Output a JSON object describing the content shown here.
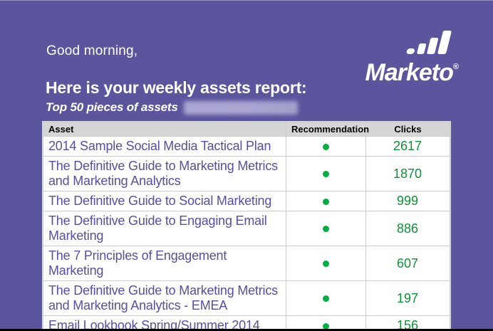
{
  "page": {
    "greeting": "Good morning,",
    "heading": "Here is your weekly assets report:",
    "subheading": "Top 50 pieces of assets"
  },
  "logo": {
    "brand": "Marketo",
    "registered_mark": "®",
    "bars_icon": "marketo-bars-icon"
  },
  "table": {
    "columns": [
      "Asset",
      "Recommendation",
      "Clicks"
    ],
    "rows": [
      {
        "asset": "2014 Sample Social Media Tactical Plan",
        "recommendation": "green-dot",
        "clicks": "2617"
      },
      {
        "asset": "The Definitive Guide to Marketing Metrics and Marketing Analytics",
        "recommendation": "green-dot",
        "clicks": "1870"
      },
      {
        "asset": "The Definitive Guide to Social Marketing",
        "recommendation": "green-dot",
        "clicks": "999"
      },
      {
        "asset": "The Definitive Guide to Engaging Email Marketing",
        "recommendation": "green-dot",
        "clicks": "886"
      },
      {
        "asset": "The 7 Principles of Engagement Marketing",
        "recommendation": "green-dot",
        "clicks": "607"
      },
      {
        "asset": "The Definitive Guide to Marketing Metrics and Marketing Analytics - EMEA",
        "recommendation": "green-dot",
        "clicks": "197"
      },
      {
        "asset": "Email Lookbook Spring/Summer 2014",
        "recommendation": "green-dot",
        "clicks": "156"
      }
    ]
  },
  "colors": {
    "background_purple": "#5b559e",
    "asset_link_purple": "#564fa2",
    "recommendation_dot_green": "#00ae41",
    "clicks_text_green": "#0e9138",
    "header_row_gray": "#d6d6d6",
    "logo_white": "#ffffff"
  }
}
